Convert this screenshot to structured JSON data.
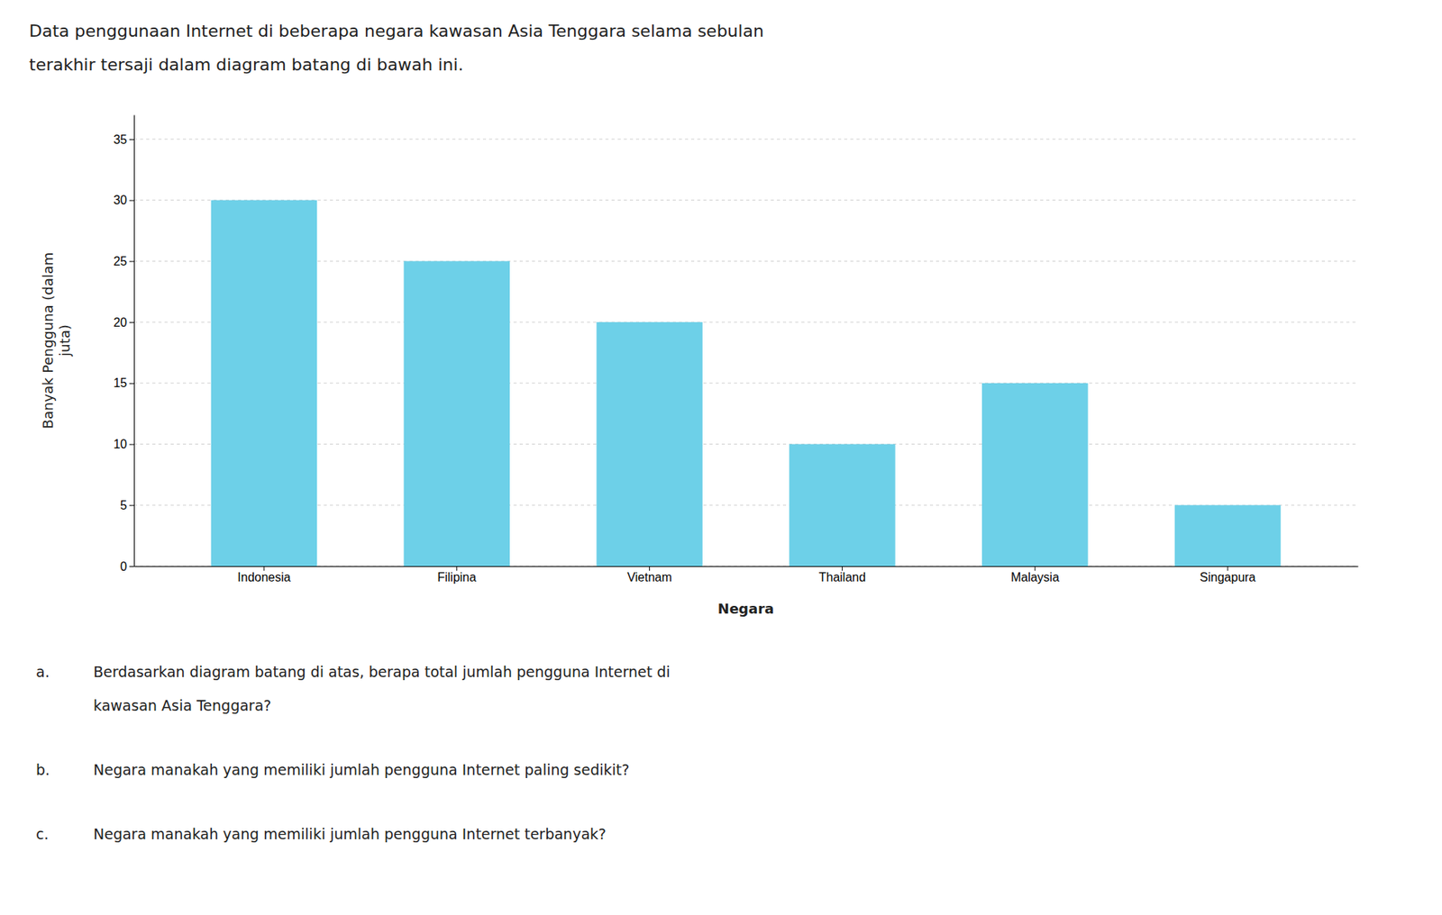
{
  "chart_data": {
    "type": "bar",
    "title": [
      "Data penggunaan Internet di beberapa negara kawasan Asia Tenggara selama sebulan",
      "terakhir tersaji dalam diagram batang di bawah ini."
    ],
    "categories": [
      "Indonesia",
      "Filipina",
      "Vietnam",
      "Thailand",
      "Malaysia",
      "Singapura"
    ],
    "values": [
      30,
      25,
      20,
      10,
      15,
      5
    ],
    "color": "#6DD0E8",
    "xlabel": "Negara",
    "ylabel": [
      "Banyak Pengguna (dalam",
      "juta)"
    ],
    "ylim": [
      0,
      37
    ],
    "yticks": [
      0,
      5,
      10,
      15,
      20,
      25,
      30,
      35
    ],
    "grid": true,
    "annotations": [
      {
        "label": "a.",
        "lines": [
          "Berdasarkan diagram batang di atas, berapa total jumlah pengguna Internet di",
          "kawasan Asia Tenggara?"
        ]
      },
      {
        "label": "b.",
        "lines": [
          "Negara manakah yang memiliki jumlah pengguna Internet paling sedikit?"
        ]
      },
      {
        "label": "c.",
        "lines": [
          "Negara manakah yang memiliki jumlah pengguna Internet terbanyak?"
        ]
      }
    ]
  }
}
